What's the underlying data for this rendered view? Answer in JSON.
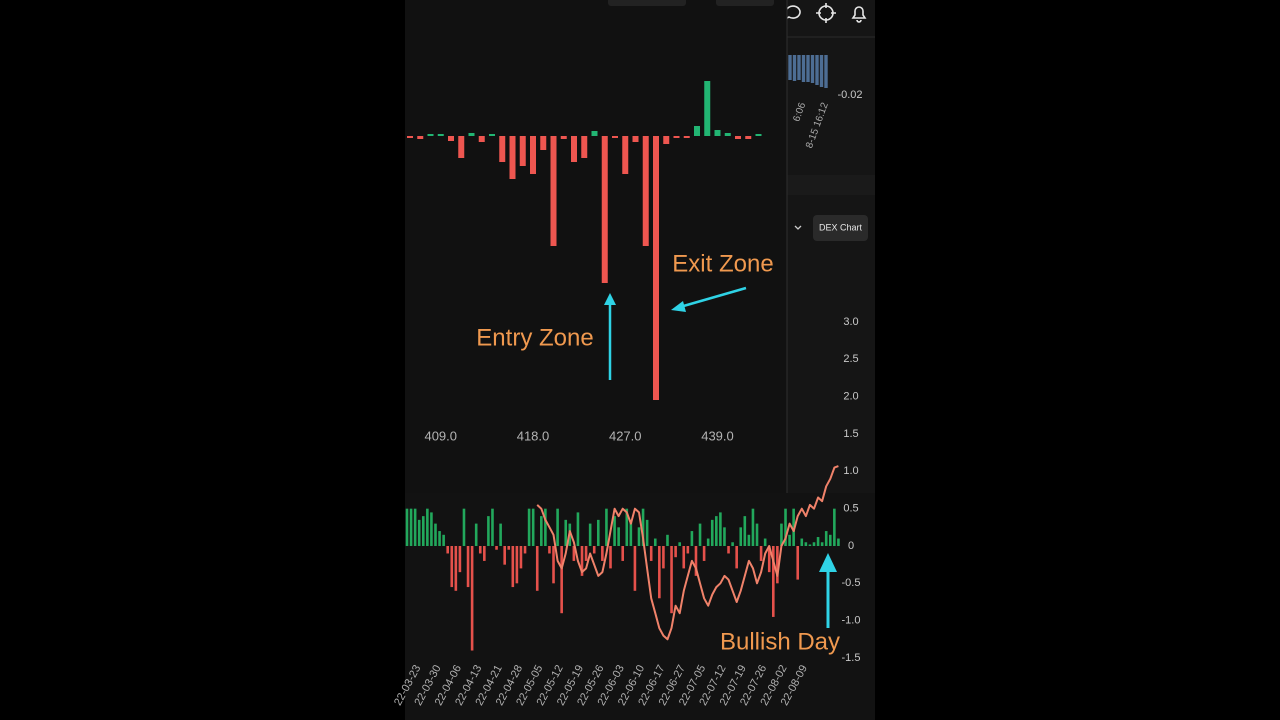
{
  "chart_data": [
    {
      "type": "bar",
      "categories": [
        null,
        null,
        null,
        "409.0",
        null,
        null,
        null,
        null,
        null,
        null,
        null,
        null,
        "418.0",
        null,
        null,
        null,
        null,
        null,
        null,
        null,
        null,
        "427.0",
        null,
        null,
        null,
        null,
        null,
        null,
        null,
        null,
        "439.0",
        null,
        null,
        null,
        null
      ],
      "values": [
        -2,
        -3,
        2,
        2,
        -5,
        -22,
        3,
        -6,
        2,
        -26,
        -43,
        -30,
        -38,
        -14,
        -110,
        -3,
        -26,
        -22,
        5,
        -147,
        -2,
        -38,
        -6,
        -110,
        -264,
        -8,
        -2,
        -2,
        10,
        55,
        6,
        3,
        -3,
        -3,
        2
      ],
      "positive_color": "#22b573",
      "negative_color": "#ee5650",
      "ylim": [
        -270,
        60
      ],
      "annotations": [
        {
          "text": "Entry Zone",
          "color": "#f0994f"
        },
        {
          "text": "Exit Zone",
          "color": "#f0994f"
        }
      ]
    },
    {
      "type": "combo",
      "categories": [
        null,
        null,
        "22-03-23",
        null,
        null,
        null,
        null,
        "22-03-30",
        null,
        null,
        null,
        null,
        "22-04-06",
        null,
        null,
        null,
        null,
        "22-04-13",
        null,
        null,
        null,
        null,
        "22-04-21",
        null,
        null,
        null,
        null,
        "22-04-28",
        null,
        null,
        null,
        null,
        "22-05-05",
        null,
        null,
        null,
        null,
        "22-05-12",
        null,
        null,
        null,
        null,
        "22-05-19",
        null,
        null,
        null,
        null,
        "22-05-26",
        null,
        null,
        null,
        null,
        "22-06-03",
        null,
        null,
        null,
        null,
        "22-06-10",
        null,
        null,
        null,
        null,
        "22-06-17",
        null,
        null,
        null,
        null,
        "22-06-27",
        null,
        null,
        null,
        null,
        "22-07-05",
        null,
        null,
        null,
        null,
        "22-07-12",
        null,
        null,
        null,
        null,
        "22-07-19",
        null,
        null,
        null,
        null,
        "22-07-26",
        null,
        null,
        null,
        null,
        "22-08-02",
        null,
        null,
        null,
        null,
        "22-08-09",
        null,
        null,
        null,
        null,
        null,
        null,
        null,
        null,
        null
      ],
      "bars": {
        "positive_color": "#22a85c",
        "negative_color": "#e5514b",
        "values": [
          0.5,
          0.5,
          0.5,
          0.35,
          0.4,
          0.5,
          0.45,
          0.3,
          0.2,
          0.15,
          -0.1,
          -0.55,
          -0.6,
          -0.35,
          0.5,
          -0.55,
          -1.4,
          0.3,
          -0.1,
          -0.2,
          0.4,
          0.5,
          -0.05,
          0.3,
          -0.25,
          -0.05,
          -0.55,
          -0.5,
          -0.3,
          -0.1,
          0.5,
          0.5,
          -0.6,
          0.4,
          0.5,
          -0.1,
          -0.5,
          0.5,
          -0.9,
          0.35,
          0.3,
          -0.2,
          0.45,
          -0.4,
          -0.2,
          0.3,
          -0.1,
          0.35,
          -0.2,
          0.5,
          -0.3,
          0.4,
          0.25,
          -0.2,
          0.5,
          0.35,
          -0.6,
          0.25,
          0.5,
          0.35,
          -0.2,
          0.1,
          -0.7,
          -0.3,
          0.15,
          -0.9,
          -0.15,
          0.05,
          -0.3,
          -0.1,
          0.2,
          -0.4,
          0.3,
          -0.2,
          0.1,
          0.35,
          0.4,
          0.45,
          0.25,
          -0.1,
          0.05,
          -0.3,
          0.25,
          0.4,
          0.15,
          0.5,
          0.3,
          -0.2,
          0.1,
          -0.35,
          -0.95,
          -0.5,
          0.3,
          0.5,
          0.15,
          0.5,
          -0.45,
          0.1,
          0.05,
          0.02,
          0.05,
          0.12,
          0.05,
          0.2,
          0.15,
          0.5,
          0.1
        ]
      },
      "line": {
        "color": "#f0826a",
        "values": [
          null,
          null,
          null,
          null,
          null,
          null,
          null,
          null,
          null,
          null,
          null,
          null,
          null,
          null,
          null,
          null,
          null,
          null,
          null,
          null,
          null,
          null,
          null,
          null,
          null,
          null,
          null,
          null,
          null,
          null,
          null,
          null,
          0.55,
          0.5,
          0.35,
          0.25,
          0.15,
          -0.2,
          -0.3,
          -0.1,
          0.2,
          0.05,
          -0.2,
          -0.35,
          -0.3,
          -0.1,
          -0.25,
          -0.4,
          -0.35,
          -0.1,
          0.2,
          0.5,
          0.4,
          0.5,
          0.45,
          0.3,
          0.5,
          0.45,
          0.1,
          -0.3,
          -0.7,
          -0.9,
          -1.1,
          -1.2,
          -1.25,
          -1.1,
          -0.8,
          -0.9,
          -0.6,
          -0.4,
          -0.2,
          -0.3,
          -0.5,
          -0.7,
          -0.8,
          -0.65,
          -0.55,
          -0.5,
          -0.4,
          -0.45,
          -0.6,
          -0.75,
          -0.6,
          -0.4,
          -0.2,
          -0.3,
          -0.5,
          -0.35,
          -0.1,
          0.0,
          -0.2,
          -0.4,
          0.0,
          0.1,
          0.3,
          0.2,
          0.4,
          0.5,
          0.4,
          0.55,
          0.5,
          0.65,
          0.6,
          0.8,
          0.9,
          1.05,
          1.07
        ]
      },
      "ylim": [
        -1.5,
        3.0
      ],
      "yticks": [
        {
          "value": 3,
          "label": "3.0"
        },
        2.5,
        {
          "value": 2,
          "label": "2.0"
        },
        1.5,
        {
          "value": 1,
          "label": "1.0"
        },
        0.5,
        0,
        -0.5,
        {
          "value": -1,
          "label": "-1.0"
        },
        -1.5
      ],
      "annotations": [
        {
          "text": "Bullish Day",
          "color": "#f0994f"
        }
      ]
    },
    {
      "type": "bar",
      "categories": [
        null,
        null,
        "6:06",
        null,
        null,
        null,
        null,
        "8-15 16:12",
        null
      ],
      "values": [
        -0.0125,
        -0.013,
        -0.0125,
        -0.0135,
        -0.0135,
        -0.014,
        -0.015,
        -0.016,
        -0.0165
      ],
      "color": "#4d6d93",
      "ylim": [
        -0.02,
        0
      ],
      "yticks": [
        -0.02
      ]
    }
  ],
  "ui": {
    "button": "DEX Chart"
  }
}
